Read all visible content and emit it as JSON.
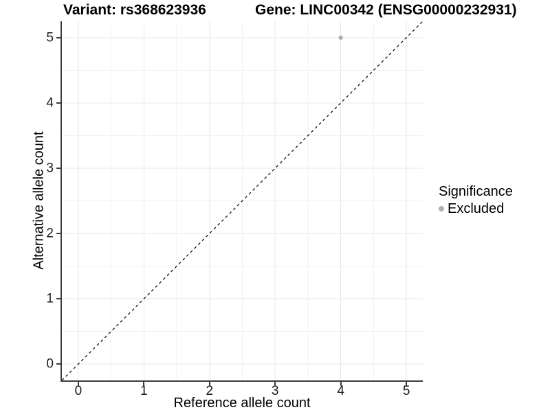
{
  "header": {
    "variant_title": "Variant: rs368623936",
    "gene_title": "Gene: LINC00342 (ENSG00000232931)"
  },
  "legend": {
    "title": "Significance",
    "items": [
      {
        "label": "Excluded",
        "color": "#b0b0b0"
      }
    ]
  },
  "chart_data": {
    "type": "scatter",
    "xlabel": "Reference allele count",
    "ylabel": "Alternative allele count",
    "xlim": [
      -0.25,
      5.25
    ],
    "ylim": [
      -0.25,
      5.25
    ],
    "x_ticks": [
      0,
      1,
      2,
      3,
      4,
      5
    ],
    "y_ticks": [
      0,
      1,
      2,
      3,
      4,
      5
    ],
    "x_minor_ticks": [
      0.5,
      1.5,
      2.5,
      3.5,
      4.5
    ],
    "y_minor_ticks": [
      0.5,
      1.5,
      2.5,
      3.5,
      4.5
    ],
    "grid": {
      "major_color": "#e7e7e7",
      "minor_color": "#f2f2f2",
      "background": "#ffffff"
    },
    "reference_line": {
      "kind": "identity y=x",
      "style": "dashed",
      "color": "#000000",
      "x1": -0.25,
      "y1": -0.25,
      "x2": 5.25,
      "y2": 5.25
    },
    "series": [
      {
        "name": "Excluded",
        "color": "#b0b0b0",
        "points": [
          {
            "x": 4,
            "y": 5
          }
        ]
      }
    ],
    "legend_position": "right",
    "legend_title": "Significance"
  },
  "style": {
    "axis_line_color": "#3c3c3c",
    "tick_color": "#3c3c3c",
    "point_radius": 3.2
  }
}
